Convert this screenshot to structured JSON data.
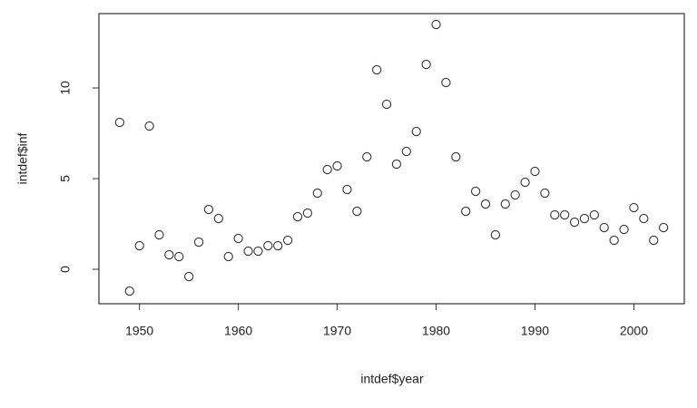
{
  "chart_data": {
    "type": "scatter",
    "xlabel": "intdef$year",
    "ylabel": "intdef$inf",
    "x": [
      1948,
      1949,
      1950,
      1951,
      1952,
      1953,
      1954,
      1955,
      1956,
      1957,
      1958,
      1959,
      1960,
      1961,
      1962,
      1963,
      1964,
      1965,
      1966,
      1967,
      1968,
      1969,
      1970,
      1971,
      1972,
      1973,
      1974,
      1975,
      1976,
      1977,
      1978,
      1979,
      1980,
      1981,
      1982,
      1983,
      1984,
      1985,
      1986,
      1987,
      1988,
      1989,
      1990,
      1991,
      1992,
      1993,
      1994,
      1995,
      1996,
      1997,
      1998,
      1999,
      2000,
      2001,
      2002,
      2003
    ],
    "values": [
      8.1,
      -1.2,
      1.3,
      7.9,
      1.9,
      0.8,
      0.7,
      -0.4,
      1.5,
      3.3,
      2.8,
      0.7,
      1.7,
      1.0,
      1.0,
      1.3,
      1.3,
      1.6,
      2.9,
      3.1,
      4.2,
      5.5,
      5.7,
      4.4,
      3.2,
      6.2,
      11.0,
      9.1,
      5.8,
      6.5,
      7.6,
      11.3,
      13.5,
      10.3,
      6.2,
      3.2,
      4.3,
      3.6,
      1.9,
      3.6,
      4.1,
      4.8,
      5.4,
      4.2,
      3.0,
      3.0,
      2.6,
      2.8,
      3.0,
      2.3,
      1.6,
      2.2,
      3.4,
      2.8,
      1.6,
      2.3
    ],
    "color": "#333333",
    "xlim": [
      1945.9,
      2005.1
    ],
    "ylim": [
      -1.9,
      14.1
    ],
    "xticks": [
      1950,
      1960,
      1970,
      1980,
      1990,
      2000
    ],
    "yticks": [
      0,
      5,
      10
    ]
  }
}
